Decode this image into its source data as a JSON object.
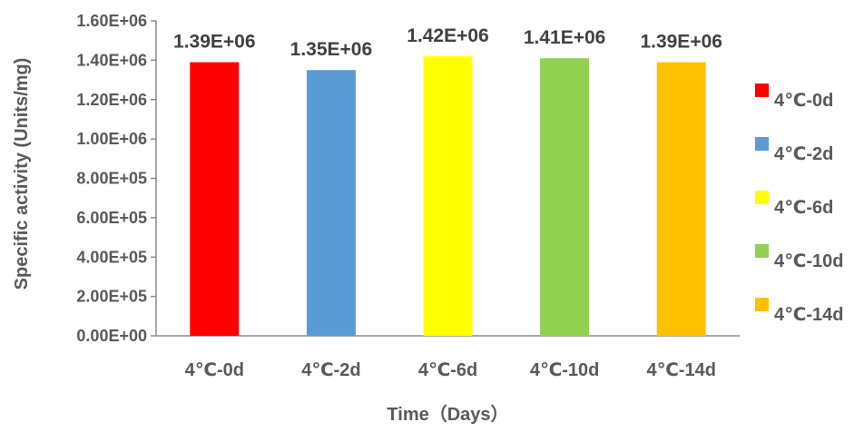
{
  "chart_data": {
    "type": "bar",
    "categories": [
      "4℃-0d",
      "4℃-2d",
      "4℃-6d",
      "4℃-10d",
      "4℃-14d"
    ],
    "values": [
      1390000,
      1350000,
      1420000,
      1410000,
      1390000
    ],
    "data_labels": [
      "1.39E+06",
      "1.35E+06",
      "1.42E+06",
      "1.41E+06",
      "1.39E+06"
    ],
    "colors": [
      "#ff0000",
      "#5b9bd5",
      "#ffff00",
      "#92d050",
      "#ffc000"
    ],
    "xlabel": "Time（Days）",
    "ylabel": "Specific activity (Units/mg)",
    "ylim": [
      0,
      1600000
    ],
    "yticks": [
      0,
      200000,
      400000,
      600000,
      800000,
      1000000,
      1200000,
      1400000,
      1600000
    ],
    "ytick_labels": [
      "0.00E+00",
      "2.00E+05",
      "4.00E+05",
      "6.00E+05",
      "8.00E+05",
      "1.00E+06",
      "1.20E+06",
      "1.40E+06",
      "1.60E+06"
    ],
    "grid": false,
    "legend": {
      "placement": "right",
      "entries": [
        "4℃-0d",
        "4℃-2d",
        "4℃-6d",
        "4℃-10d",
        "4℃-14d"
      ]
    }
  }
}
